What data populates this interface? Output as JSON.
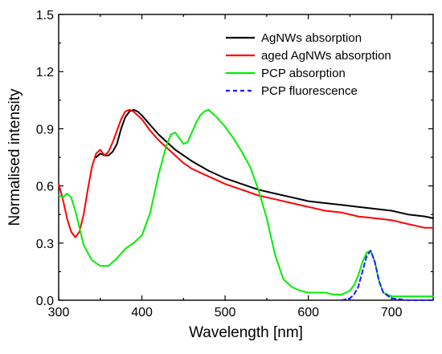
{
  "chart_data": {
    "type": "line",
    "xlabel": "Wavelength [nm]",
    "ylabel": "Normalised intensity",
    "xlim": [
      300,
      750
    ],
    "ylim": [
      0,
      1.5
    ],
    "xticks": [
      300,
      400,
      500,
      600,
      700
    ],
    "yticks": [
      0.0,
      0.3,
      0.6,
      0.9,
      1.2,
      1.5
    ],
    "ytick_labels": [
      "0.0",
      "0.3",
      "0.6",
      "0.9",
      "1.2",
      "1.5"
    ],
    "grid": false,
    "legend": "top-right",
    "series": [
      {
        "name": "AgNWs absorption",
        "color": "#000000",
        "style": "solid",
        "x": [
          345,
          350,
          355,
          360,
          365,
          370,
          375,
          380,
          385,
          390,
          395,
          400,
          410,
          420,
          430,
          440,
          450,
          460,
          480,
          500,
          520,
          540,
          560,
          580,
          600,
          620,
          640,
          660,
          680,
          700,
          720,
          740,
          750
        ],
        "y": [
          0.75,
          0.77,
          0.76,
          0.76,
          0.78,
          0.82,
          0.9,
          0.96,
          0.99,
          1.0,
          0.99,
          0.97,
          0.92,
          0.87,
          0.83,
          0.79,
          0.76,
          0.73,
          0.68,
          0.64,
          0.61,
          0.58,
          0.56,
          0.54,
          0.52,
          0.51,
          0.5,
          0.49,
          0.48,
          0.47,
          0.45,
          0.44,
          0.43
        ]
      },
      {
        "name": "aged AgNWs absorption",
        "color": "#ff0000",
        "style": "solid",
        "x": [
          300,
          305,
          310,
          315,
          320,
          325,
          330,
          335,
          340,
          345,
          350,
          355,
          360,
          365,
          370,
          375,
          380,
          385,
          390,
          395,
          400,
          410,
          420,
          430,
          440,
          450,
          460,
          480,
          500,
          520,
          540,
          560,
          580,
          600,
          620,
          640,
          660,
          680,
          700,
          720,
          740,
          750
        ],
        "y": [
          0.61,
          0.53,
          0.43,
          0.36,
          0.33,
          0.36,
          0.45,
          0.58,
          0.7,
          0.77,
          0.79,
          0.76,
          0.78,
          0.83,
          0.89,
          0.95,
          0.99,
          1.0,
          0.99,
          0.97,
          0.95,
          0.89,
          0.84,
          0.8,
          0.76,
          0.72,
          0.69,
          0.65,
          0.61,
          0.58,
          0.55,
          0.53,
          0.51,
          0.49,
          0.47,
          0.46,
          0.44,
          0.43,
          0.42,
          0.4,
          0.38,
          0.38
        ]
      },
      {
        "name": "PCP absorption",
        "color": "#00ee00",
        "style": "solid",
        "x": [
          300,
          305,
          310,
          315,
          320,
          325,
          330,
          340,
          350,
          360,
          370,
          380,
          390,
          400,
          410,
          420,
          430,
          435,
          440,
          445,
          450,
          455,
          460,
          465,
          470,
          475,
          480,
          485,
          490,
          500,
          510,
          520,
          530,
          540,
          550,
          560,
          570,
          580,
          590,
          600,
          610,
          620,
          630,
          640,
          650,
          655,
          660,
          665,
          670,
          675,
          680,
          685,
          690,
          700,
          710,
          720,
          730,
          740,
          750
        ],
        "y": [
          0.55,
          0.54,
          0.56,
          0.54,
          0.47,
          0.38,
          0.29,
          0.21,
          0.18,
          0.18,
          0.22,
          0.27,
          0.3,
          0.34,
          0.46,
          0.66,
          0.82,
          0.87,
          0.88,
          0.85,
          0.82,
          0.83,
          0.88,
          0.93,
          0.97,
          0.99,
          1.0,
          0.98,
          0.96,
          0.91,
          0.85,
          0.78,
          0.7,
          0.58,
          0.43,
          0.24,
          0.11,
          0.07,
          0.05,
          0.04,
          0.04,
          0.04,
          0.03,
          0.03,
          0.05,
          0.08,
          0.13,
          0.2,
          0.25,
          0.26,
          0.2,
          0.1,
          0.04,
          0.02,
          0.02,
          0.02,
          0.02,
          0.02,
          0.02
        ]
      },
      {
        "name": "PCP fluorescence",
        "color": "#1a1aff",
        "style": "dashed",
        "x": [
          640,
          650,
          655,
          660,
          665,
          670,
          675,
          680,
          685,
          690,
          700,
          720,
          740,
          750
        ],
        "y": [
          0.0,
          0.01,
          0.03,
          0.07,
          0.15,
          0.23,
          0.26,
          0.2,
          0.1,
          0.04,
          0.01,
          0.0,
          0.0,
          0.0
        ]
      }
    ]
  }
}
